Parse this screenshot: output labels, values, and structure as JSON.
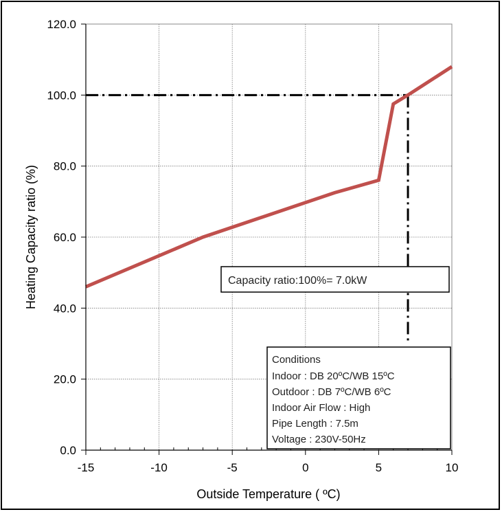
{
  "chart_data": {
    "type": "line",
    "title": "",
    "xlabel": "Outside Temperature ( ºC)",
    "ylabel": "Heating Capacity ratio (%)",
    "xlim": [
      -15,
      10
    ],
    "ylim": [
      0,
      120
    ],
    "x_ticks": [
      -15,
      -10,
      -5,
      0,
      5,
      10
    ],
    "y_ticks": [
      0,
      20,
      40,
      60,
      80,
      100,
      120
    ],
    "x_tick_labels": [
      "-15",
      "-10",
      "-5",
      "0",
      "5",
      "10"
    ],
    "y_tick_labels": [
      "0.0",
      "20.0",
      "40.0",
      "60.0",
      "80.0",
      "100.0",
      "120.0"
    ],
    "grid": true,
    "series": [
      {
        "color": "#c0504d",
        "points": [
          [
            -15,
            46
          ],
          [
            -7,
            60
          ],
          [
            2,
            72.5
          ],
          [
            5,
            76
          ],
          [
            6,
            97.5
          ],
          [
            7,
            100
          ],
          [
            10,
            108
          ]
        ]
      }
    ],
    "reference_lines": [
      {
        "orientation": "horizontal",
        "value": 100,
        "from": -15,
        "to": 7,
        "style": "dash-dot"
      },
      {
        "orientation": "vertical",
        "value": 7,
        "from": 30,
        "to": 100,
        "style": "dash-dot"
      }
    ],
    "annotations": {
      "capacity_ratio": "Capacity ratio:100%= 7.0kW",
      "conditions": [
        "Conditions",
        "Indoor : DB 20ºC/WB 15ºC",
        "Outdoor : DB 7ºC/WB 6ºC",
        "Indoor Air Flow : High",
        "Pipe Length : 7.5m",
        "Voltage : 230V-50Hz"
      ]
    }
  }
}
